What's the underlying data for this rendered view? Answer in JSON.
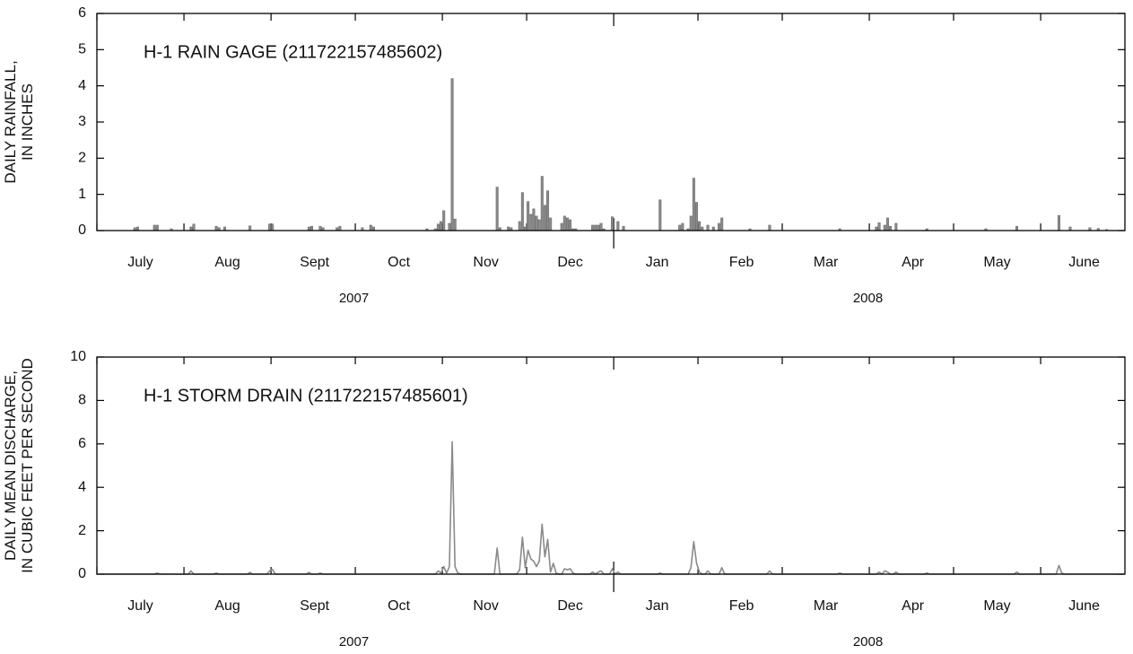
{
  "chart_data": [
    {
      "type": "bar",
      "title": "H-1 RAIN GAGE (211722157485602)",
      "ylabel": [
        "DAILY RAINFALL,",
        "IN INCHES"
      ],
      "color": "#8a8a8a",
      "ylim": [
        0,
        6
      ],
      "yticks": [
        0,
        1,
        2,
        3,
        4,
        5,
        6
      ],
      "groups": [
        "2007",
        "2008"
      ],
      "categories": [
        null,
        null,
        null,
        null,
        null,
        null,
        null,
        null,
        null,
        null,
        null,
        null,
        null,
        null,
        null,
        "July",
        null,
        null,
        null,
        null,
        null,
        null,
        null,
        null,
        null,
        null,
        null,
        null,
        null,
        null,
        null,
        null,
        null,
        null,
        null,
        null,
        null,
        null,
        null,
        null,
        null,
        null,
        null,
        null,
        null,
        null,
        "Aug",
        null,
        null,
        null,
        null,
        null,
        null,
        null,
        null,
        null,
        null,
        null,
        null,
        null,
        null,
        null,
        null,
        null,
        null,
        null,
        null,
        null,
        null,
        null,
        null,
        null,
        null,
        null,
        null,
        null,
        null,
        "Sept",
        null,
        null,
        null,
        null,
        null,
        null,
        null,
        null,
        null,
        null,
        null,
        null,
        null,
        null,
        null,
        null,
        null,
        null,
        null,
        null,
        null,
        null,
        null,
        null,
        null,
        null,
        null,
        null,
        null,
        "Oct",
        null,
        null,
        null,
        null,
        null,
        null,
        null,
        null,
        null,
        null,
        null,
        null,
        null,
        null,
        null,
        null,
        null,
        null,
        null,
        null,
        null,
        null,
        null,
        null,
        null,
        null,
        null,
        null,
        null,
        null,
        "Nov",
        null,
        null,
        null,
        null,
        null,
        null,
        null,
        null,
        null,
        null,
        null,
        null,
        null,
        null,
        null,
        null,
        null,
        null,
        null,
        null,
        null,
        null,
        null,
        null,
        null,
        null,
        null,
        null,
        null,
        "Dec",
        null,
        null,
        null,
        null,
        null,
        null,
        null,
        null,
        null,
        null,
        null,
        null,
        null,
        null,
        null,
        null,
        null,
        null,
        null,
        null,
        null,
        null,
        null,
        null,
        null,
        null,
        null,
        null,
        null,
        null,
        "Jan",
        null,
        null,
        null,
        null,
        null,
        null,
        null,
        null,
        null,
        null,
        null,
        null,
        null,
        null,
        null,
        null,
        null,
        null,
        null,
        null,
        null,
        null,
        null,
        null,
        null,
        null,
        null,
        null,
        null,
        "Feb",
        null,
        null,
        null,
        null,
        null,
        null,
        null,
        null,
        null,
        null,
        null,
        null,
        null,
        null,
        null,
        null,
        null,
        null,
        null,
        null,
        null,
        null,
        null,
        null,
        null,
        null,
        null,
        null,
        null,
        "Mar",
        null,
        null,
        null,
        null,
        null,
        null,
        null,
        null,
        null,
        null,
        null,
        null,
        null,
        null,
        null,
        null,
        null,
        null,
        null,
        null,
        null,
        null,
        null,
        null,
        null,
        null,
        null,
        null,
        null,
        null,
        "Apr",
        null,
        null,
        null,
        null,
        null,
        null,
        null,
        null,
        null,
        null,
        null,
        null,
        null,
        null,
        null,
        null,
        null,
        null,
        null,
        null,
        null,
        null,
        null,
        null,
        null,
        null,
        null,
        null,
        null,
        "May",
        null,
        null,
        null,
        null,
        null,
        null,
        null,
        null,
        null,
        null,
        null,
        null,
        null,
        null,
        null,
        null,
        null,
        null,
        null,
        null,
        null,
        null,
        null,
        null,
        null,
        null,
        null,
        null,
        null,
        null,
        "June",
        null,
        null,
        null,
        null,
        null,
        null,
        null,
        null,
        null,
        null,
        null,
        null,
        null,
        null
      ],
      "values": [
        0,
        0,
        0,
        0,
        0,
        0,
        0,
        0,
        0,
        0,
        0,
        0,
        0,
        0.08,
        0.1,
        0,
        0,
        0,
        0,
        0,
        0.15,
        0.15,
        0,
        0,
        0,
        0,
        0.05,
        0,
        0,
        0,
        0,
        0,
        0,
        0.1,
        0.18,
        0,
        0,
        0,
        0,
        0,
        0,
        0,
        0.12,
        0.08,
        0,
        0.1,
        0,
        0,
        0,
        0,
        0,
        0,
        0,
        0,
        0.13,
        0,
        0,
        0,
        0,
        0,
        0,
        0.18,
        0.18,
        0,
        0,
        0,
        0,
        0,
        0,
        0,
        0,
        0,
        0,
        0,
        0,
        0.1,
        0.12,
        0,
        0,
        0.12,
        0.08,
        0,
        0,
        0,
        0,
        0.08,
        0.12,
        0,
        0,
        0,
        0,
        0,
        0,
        0,
        0.08,
        0,
        0,
        0.15,
        0.1,
        0,
        0,
        0,
        0,
        0,
        0,
        0,
        0,
        0,
        0,
        0,
        0,
        0,
        0,
        0,
        0,
        0,
        0,
        0.05,
        0,
        0,
        0.05,
        0.18,
        0.25,
        0.55,
        0,
        0.2,
        4.2,
        0.32,
        0,
        0,
        0,
        0,
        0,
        0,
        0,
        0,
        0,
        0,
        0,
        0,
        0,
        0,
        1.2,
        0.08,
        0,
        0,
        0.1,
        0.08,
        0,
        0,
        0.25,
        1.05,
        0.1,
        0.8,
        0.45,
        0.6,
        0.4,
        0.3,
        1.5,
        0.7,
        1.1,
        0.35,
        0,
        0,
        0,
        0.2,
        0.4,
        0.35,
        0.3,
        0.05,
        0.05,
        0,
        0,
        0,
        0,
        0,
        0.15,
        0.15,
        0.15,
        0.2,
        0.05,
        0,
        0,
        0.38,
        0,
        0.25,
        0,
        0.12,
        0,
        0,
        0,
        0,
        0,
        0,
        0,
        0,
        0,
        0,
        0,
        0,
        0.85,
        0,
        0,
        0,
        0,
        0,
        0,
        0.15,
        0.2,
        0,
        0.05,
        0.4,
        1.45,
        0.78,
        0.25,
        0.1,
        0,
        0.15,
        0,
        0.1,
        0,
        0.2,
        0.35,
        0,
        0,
        0,
        0,
        0,
        0,
        0,
        0,
        0,
        0.05,
        0,
        0,
        0,
        0,
        0,
        0,
        0.15,
        0,
        0,
        0,
        0,
        0,
        0,
        0,
        0,
        0,
        0,
        0,
        0,
        0,
        0,
        0,
        0,
        0,
        0,
        0,
        0,
        0,
        0,
        0,
        0,
        0.05,
        0,
        0,
        0,
        0,
        0,
        0,
        0,
        0,
        0,
        0,
        0,
        0,
        0.1,
        0.22,
        0,
        0.15,
        0.35,
        0.12,
        0,
        0.2,
        0,
        0,
        0,
        0,
        0,
        0,
        0,
        0,
        0,
        0,
        0.05,
        0,
        0,
        0,
        0,
        0,
        0,
        0,
        0,
        0,
        0,
        0,
        0,
        0,
        0,
        0,
        0,
        0,
        0,
        0,
        0,
        0.05,
        0,
        0,
        0,
        0,
        0,
        0,
        0,
        0,
        0,
        0,
        0.12,
        0,
        0,
        0,
        0,
        0,
        0,
        0,
        0,
        0,
        0,
        0,
        0,
        0,
        0,
        0.42,
        0,
        0,
        0,
        0.1,
        0,
        0,
        0,
        0,
        0,
        0,
        0.08,
        0,
        0,
        0.06,
        0,
        0,
        0.03,
        0,
        0,
        0,
        0,
        0,
        0
      ]
    },
    {
      "type": "line",
      "title": "H-1 STORM DRAIN (211722157485601)",
      "ylabel": [
        "DAILY MEAN DISCHARGE,",
        "IN CUBIC FEET PER SECOND"
      ],
      "color": "#8a8a8a",
      "ylim": [
        0,
        10
      ],
      "yticks": [
        0,
        2,
        4,
        6,
        8,
        10
      ],
      "groups": [
        "2007",
        "2008"
      ],
      "categories": [
        null,
        null,
        null,
        null,
        null,
        null,
        null,
        null,
        null,
        null,
        null,
        null,
        null,
        null,
        null,
        "July",
        null,
        null,
        null,
        null,
        null,
        null,
        null,
        null,
        null,
        null,
        null,
        null,
        null,
        null,
        null,
        null,
        null,
        null,
        null,
        null,
        null,
        null,
        null,
        null,
        null,
        null,
        null,
        null,
        null,
        null,
        "Aug",
        null,
        null,
        null,
        null,
        null,
        null,
        null,
        null,
        null,
        null,
        null,
        null,
        null,
        null,
        null,
        null,
        null,
        null,
        null,
        null,
        null,
        null,
        null,
        null,
        null,
        null,
        null,
        null,
        null,
        null,
        "Sept",
        null,
        null,
        null,
        null,
        null,
        null,
        null,
        null,
        null,
        null,
        null,
        null,
        null,
        null,
        null,
        null,
        null,
        null,
        null,
        null,
        null,
        null,
        null,
        null,
        null,
        null,
        null,
        null,
        null,
        "Oct",
        null,
        null,
        null,
        null,
        null,
        null,
        null,
        null,
        null,
        null,
        null,
        null,
        null,
        null,
        null,
        null,
        null,
        null,
        null,
        null,
        null,
        null,
        null,
        null,
        null,
        null,
        null,
        null,
        null,
        null,
        "Nov",
        null,
        null,
        null,
        null,
        null,
        null,
        null,
        null,
        null,
        null,
        null,
        null,
        null,
        null,
        null,
        null,
        null,
        null,
        null,
        null,
        null,
        null,
        null,
        null,
        null,
        null,
        null,
        null,
        null,
        "Dec",
        null,
        null,
        null,
        null,
        null,
        null,
        null,
        null,
        null,
        null,
        null,
        null,
        null,
        null,
        null,
        null,
        null,
        null,
        null,
        null,
        null,
        null,
        null,
        null,
        null,
        null,
        null,
        null,
        null,
        null,
        "Jan",
        null,
        null,
        null,
        null,
        null,
        null,
        null,
        null,
        null,
        null,
        null,
        null,
        null,
        null,
        null,
        null,
        null,
        null,
        null,
        null,
        null,
        null,
        null,
        null,
        null,
        null,
        null,
        null,
        null,
        "Feb",
        null,
        null,
        null,
        null,
        null,
        null,
        null,
        null,
        null,
        null,
        null,
        null,
        null,
        null,
        null,
        null,
        null,
        null,
        null,
        null,
        null,
        null,
        null,
        null,
        null,
        null,
        null,
        null,
        null,
        "Mar",
        null,
        null,
        null,
        null,
        null,
        null,
        null,
        null,
        null,
        null,
        null,
        null,
        null,
        null,
        null,
        null,
        null,
        null,
        null,
        null,
        null,
        null,
        null,
        null,
        null,
        null,
        null,
        null,
        null,
        null,
        "Apr",
        null,
        null,
        null,
        null,
        null,
        null,
        null,
        null,
        null,
        null,
        null,
        null,
        null,
        null,
        null,
        null,
        null,
        null,
        null,
        null,
        null,
        null,
        null,
        null,
        null,
        null,
        null,
        null,
        null,
        "May",
        null,
        null,
        null,
        null,
        null,
        null,
        null,
        null,
        null,
        null,
        null,
        null,
        null,
        null,
        null,
        null,
        null,
        null,
        null,
        null,
        null,
        null,
        null,
        null,
        null,
        null,
        null,
        null,
        null,
        null,
        "June",
        null,
        null,
        null,
        null,
        null,
        null,
        null,
        null,
        null,
        null,
        null,
        null,
        null,
        null
      ],
      "values": [
        0,
        0,
        0,
        0,
        0,
        0,
        0,
        0,
        0,
        0,
        0,
        0,
        0,
        0,
        0,
        0,
        0,
        0,
        0,
        0,
        0,
        0.05,
        0,
        0,
        0,
        0,
        0,
        0,
        0,
        0,
        0,
        0,
        0,
        0.15,
        0,
        0,
        0,
        0,
        0,
        0,
        0,
        0,
        0.05,
        0,
        0,
        0,
        0,
        0,
        0,
        0,
        0,
        0,
        0,
        0,
        0.08,
        0,
        0,
        0,
        0,
        0,
        0,
        0.15,
        0.22,
        0,
        0,
        0,
        0,
        0,
        0,
        0,
        0,
        0,
        0,
        0,
        0,
        0.08,
        0,
        0,
        0,
        0.05,
        0,
        0,
        0,
        0,
        0,
        0,
        0,
        0,
        0,
        0,
        0,
        0,
        0,
        0,
        0,
        0,
        0,
        0,
        0,
        0,
        0,
        0,
        0,
        0,
        0,
        0,
        0,
        0,
        0,
        0,
        0,
        0,
        0,
        0,
        0,
        0,
        0,
        0,
        0,
        0,
        0,
        0.15,
        0.05,
        0.35,
        0.05,
        0.35,
        6.1,
        0.35,
        0.05,
        0,
        0,
        0,
        0,
        0,
        0,
        0,
        0,
        0,
        0,
        0,
        0,
        0,
        1.2,
        0,
        0,
        0,
        0,
        0,
        0,
        0,
        0.2,
        1.7,
        0.3,
        1.1,
        0.7,
        0.6,
        0.35,
        0.6,
        2.3,
        0.8,
        1.6,
        0.1,
        0.5,
        0.05,
        0,
        0,
        0.25,
        0.2,
        0.25,
        0.05,
        0,
        0,
        0,
        0,
        0,
        0,
        0.1,
        0,
        0.1,
        0.15,
        0,
        0,
        0,
        0.25,
        0,
        0.1,
        0,
        0,
        0,
        0,
        0,
        0,
        0,
        0,
        0,
        0,
        0,
        0,
        0,
        0,
        0.05,
        0,
        0,
        0,
        0,
        0,
        0,
        0,
        0,
        0,
        0,
        0.3,
        1.5,
        0.5,
        0.1,
        0,
        0,
        0.15,
        0,
        0,
        0,
        0,
        0.3,
        0,
        0,
        0,
        0,
        0,
        0,
        0,
        0,
        0,
        0,
        0,
        0,
        0,
        0,
        0,
        0,
        0.15,
        0,
        0,
        0,
        0,
        0,
        0,
        0,
        0,
        0,
        0,
        0,
        0,
        0,
        0,
        0,
        0,
        0,
        0,
        0,
        0,
        0,
        0,
        0,
        0,
        0.05,
        0,
        0,
        0,
        0,
        0,
        0,
        0,
        0,
        0,
        0,
        0,
        0,
        0,
        0.1,
        0,
        0.15,
        0.1,
        0,
        0,
        0.1,
        0,
        0,
        0,
        0,
        0,
        0,
        0,
        0,
        0,
        0,
        0.05,
        0,
        0,
        0,
        0,
        0,
        0,
        0,
        0,
        0,
        0,
        0,
        0,
        0,
        0,
        0,
        0,
        0,
        0,
        0,
        0,
        0,
        0,
        0,
        0,
        0,
        0,
        0,
        0,
        0,
        0,
        0,
        0.1,
        0,
        0,
        0,
        0,
        0,
        0,
        0,
        0,
        0,
        0,
        0,
        0,
        0,
        0,
        0.4,
        0.05,
        0,
        0,
        0,
        0,
        0,
        0,
        0,
        0,
        0,
        0,
        0,
        0,
        0,
        0,
        0,
        0,
        0,
        0,
        0,
        0,
        0,
        0
      ]
    }
  ]
}
